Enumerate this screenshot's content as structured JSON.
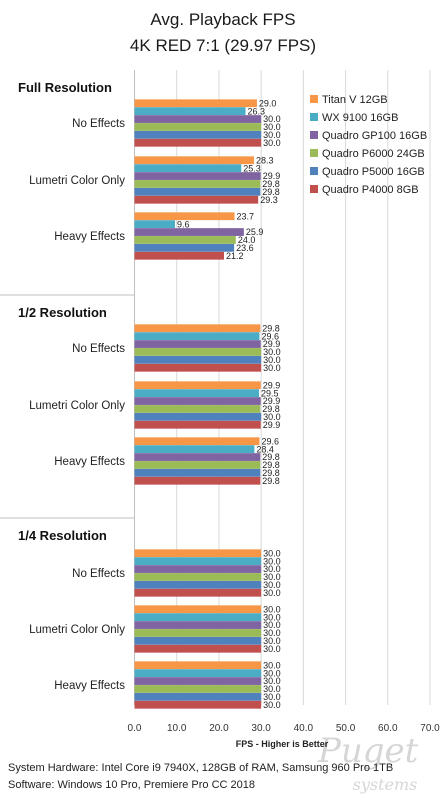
{
  "chart_data": {
    "type": "bar",
    "orientation": "horizontal",
    "title": "Avg. Playback FPS",
    "subtitle": "4K RED 7:1 (29.97 FPS)",
    "xlabel": "FPS - Higher is Better",
    "xlim": [
      0,
      70
    ],
    "xticks": [
      "0.0",
      "10.0",
      "20.0",
      "30.0",
      "40.0",
      "50.0",
      "60.0",
      "70.0"
    ],
    "grid": true,
    "legend_position": "right",
    "series": [
      {
        "name": "Titan V 12GB",
        "color": "#f79646"
      },
      {
        "name": "WX 9100 16GB",
        "color": "#4bacc6"
      },
      {
        "name": "Quadro GP100 16GB",
        "color": "#8064a2"
      },
      {
        "name": "Quadro P6000 24GB",
        "color": "#9bbb59"
      },
      {
        "name": "Quadro P5000 16GB",
        "color": "#4f81bd"
      },
      {
        "name": "Quadro P4000 8GB",
        "color": "#c0504d"
      }
    ],
    "groups": [
      {
        "label": "Full Resolution",
        "categories": [
          {
            "label": "No Effects",
            "values": [
              "29.0",
              "26.3",
              "30.0",
              "30.0",
              "30.0",
              "30.0"
            ]
          },
          {
            "label": "Lumetri Color Only",
            "values": [
              "28.3",
              "25.3",
              "29.9",
              "29.8",
              "29.8",
              "29.3"
            ]
          },
          {
            "label": "Heavy Effects",
            "values": [
              "23.7",
              "9.6",
              "25.9",
              "24.0",
              "23.6",
              "21.2"
            ]
          }
        ]
      },
      {
        "label": "1/2 Resolution",
        "categories": [
          {
            "label": "No Effects",
            "values": [
              "29.8",
              "29.6",
              "29.9",
              "30.0",
              "30.0",
              "30.0"
            ]
          },
          {
            "label": "Lumetri Color Only",
            "values": [
              "29.9",
              "29.5",
              "29.9",
              "29.8",
              "30.0",
              "29.9"
            ]
          },
          {
            "label": "Heavy Effects",
            "values": [
              "29.6",
              "28.4",
              "29.8",
              "29.8",
              "29.8",
              "29.8"
            ]
          }
        ]
      },
      {
        "label": "1/4 Resolution",
        "categories": [
          {
            "label": "No Effects",
            "values": [
              "30.0",
              "30.0",
              "30.0",
              "30.0",
              "30.0",
              "30.0"
            ]
          },
          {
            "label": "Lumetri Color Only",
            "values": [
              "30.0",
              "30.0",
              "30.0",
              "30.0",
              "30.0",
              "30.0"
            ]
          },
          {
            "label": "Heavy Effects",
            "values": [
              "30.0",
              "30.0",
              "30.0",
              "30.0",
              "30.0",
              "30.0"
            ]
          }
        ]
      }
    ]
  },
  "footer": {
    "hardware": "System Hardware: Intel Core i9 7940X,  128GB of RAM, Samsung 960 Pro 1TB",
    "software": "Software: Windows 10 Pro, Premiere Pro CC 2018"
  },
  "watermark": {
    "brand": "Puget",
    "sub": "systems"
  }
}
